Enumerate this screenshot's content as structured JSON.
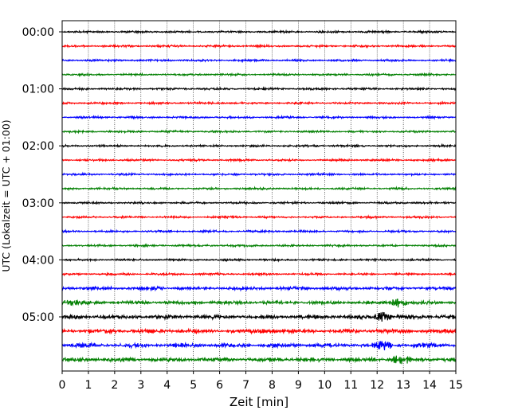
{
  "chart_data": {
    "type": "line",
    "title": "",
    "xlabel": "Zeit  [min]",
    "ylabel": "UTC (Lokalzeit = UTC + 01:00)",
    "xlim": [
      0,
      15
    ],
    "xticks": [
      0,
      1,
      2,
      3,
      4,
      5,
      6,
      7,
      8,
      9,
      10,
      11,
      12,
      13,
      14,
      15
    ],
    "xtick_labels": [
      "0",
      "1",
      "2",
      "3",
      "4",
      "5",
      "6",
      "7",
      "8",
      "9",
      "10",
      "11",
      "12",
      "13",
      "14",
      "15"
    ],
    "yticks": [
      "00:00",
      "01:00",
      "02:00",
      "03:00",
      "04:00",
      "05:00"
    ],
    "trace_interval_min": 15,
    "trace_count": 24,
    "trace_colors": [
      "#000000",
      "#ff0000",
      "#0000ff",
      "#007f00"
    ],
    "grid": "vertical dotted at each minute",
    "series_description": "Seismogram helicorder: each trace is a 15-minute segment; waveform values are noise-like and not individually readable.",
    "events": [
      {
        "trace": 20,
        "x_min": 12.2,
        "amplitude": "large"
      },
      {
        "trace": 19,
        "x_min": 12.8,
        "amplitude": "large"
      },
      {
        "trace": 22,
        "x_min": 12.2,
        "amplitude": "large"
      },
      {
        "trace": 23,
        "x_min": 12.9,
        "amplitude": "large"
      },
      {
        "trace": 21,
        "x_min": 7.8,
        "amplitude": "medium"
      },
      {
        "trace": 19,
        "x_min": 0.3,
        "amplitude": "medium"
      }
    ]
  }
}
